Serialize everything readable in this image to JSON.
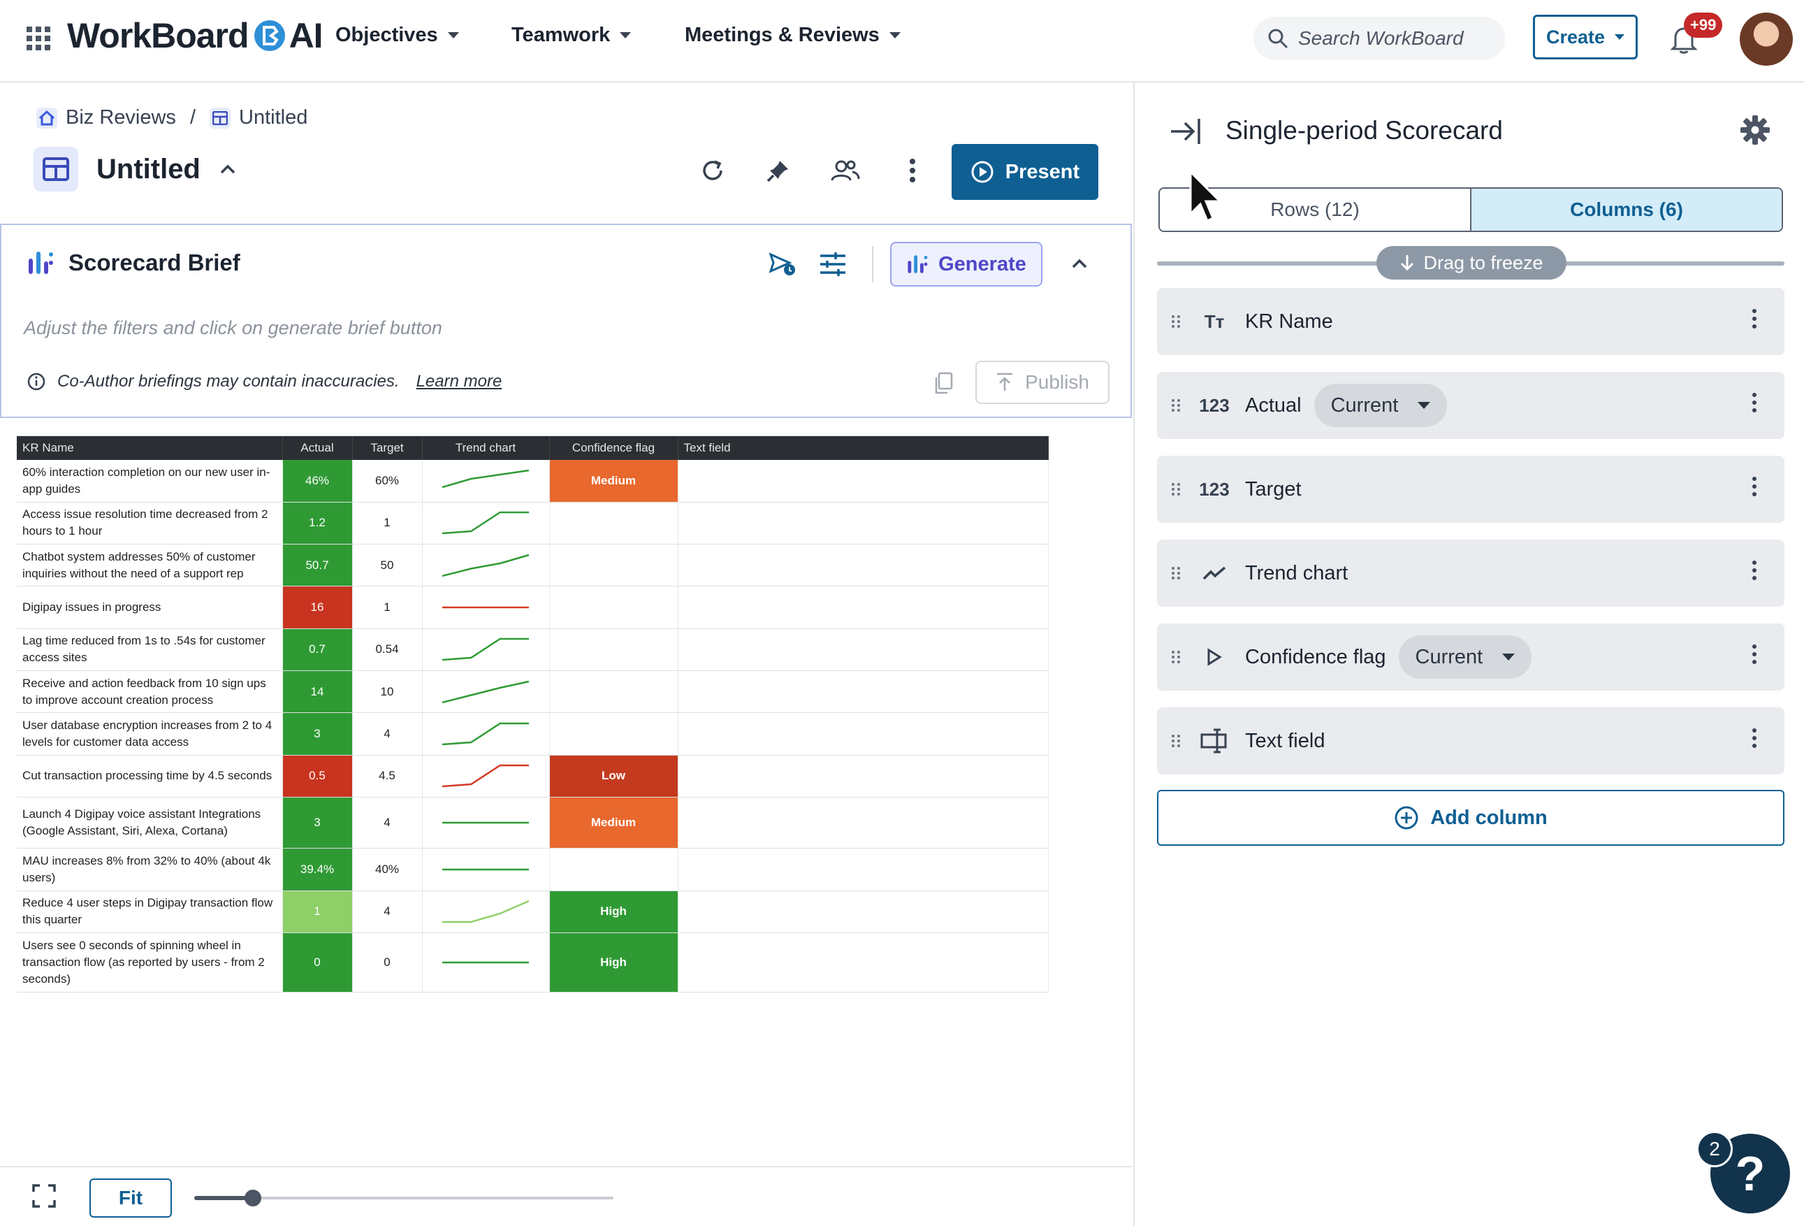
{
  "header": {
    "brand": "WorkBoard",
    "brand_suffix": "AI",
    "nav": [
      "Objectives",
      "Teamwork",
      "Meetings & Reviews"
    ],
    "search_placeholder": "Search WorkBoard",
    "create_label": "Create",
    "notifications": "+99"
  },
  "breadcrumb": {
    "root": "Biz Reviews",
    "separator": "/",
    "current": "Untitled"
  },
  "page": {
    "title": "Untitled",
    "present_label": "Present"
  },
  "brief": {
    "title": "Scorecard Brief",
    "generate_label": "Generate",
    "hint": "Adjust the filters and click on generate brief button",
    "info": "Co-Author briefings may contain inaccuracies.",
    "learn_more": "Learn more",
    "publish_label": "Publish"
  },
  "table": {
    "headers": [
      "KR Name",
      "Actual",
      "Target",
      "Trend chart",
      "Confidence flag",
      "Text field"
    ],
    "rows": [
      {
        "name": "60% interaction completion on our new user in-app guides",
        "actual": "46%",
        "target": "60%",
        "color": "#2f9a34",
        "trend": [
          0.2,
          0.6,
          0.8,
          1.0
        ],
        "trend_color": "#2f9a34",
        "flag": "Medium",
        "flag_color": "#e8682d"
      },
      {
        "name": "Access issue resolution time decreased from 2 hours to 1 hour",
        "actual": "1.2",
        "target": "1",
        "color": "#2f9a34",
        "trend": [
          0.0,
          0.1,
          1.0,
          1.0
        ],
        "trend_color": "#2f9a34",
        "flag": "",
        "flag_color": ""
      },
      {
        "name": "Chatbot system addresses 50% of customer inquiries without the need of a support rep",
        "actual": "50.7",
        "target": "50",
        "color": "#2f9a34",
        "trend": [
          0.0,
          0.35,
          0.6,
          1.0
        ],
        "trend_color": "#2f9a34",
        "flag": "",
        "flag_color": ""
      },
      {
        "name": "Digipay issues in progress",
        "actual": "16",
        "target": "1",
        "color": "#c8341f",
        "trend": [
          0.5,
          0.5,
          0.5,
          0.5
        ],
        "trend_color": "#d63a25",
        "flag": "",
        "flag_color": ""
      },
      {
        "name": "Lag time reduced from 1s to .54s for customer access sites",
        "actual": "0.7",
        "target": "0.54",
        "color": "#2f9a34",
        "trend": [
          0.0,
          0.1,
          1.0,
          1.0
        ],
        "trend_color": "#2f9a34",
        "flag": "",
        "flag_color": ""
      },
      {
        "name": "Receive and action feedback from 10 sign ups to improve account creation process",
        "actual": "14",
        "target": "10",
        "color": "#2f9a34",
        "trend": [
          0.0,
          0.35,
          0.7,
          1.0
        ],
        "trend_color": "#2f9a34",
        "flag": "",
        "flag_color": ""
      },
      {
        "name": "User database encryption increases from 2 to 4 levels for customer data access",
        "actual": "3",
        "target": "4",
        "color": "#2f9a34",
        "trend": [
          0.0,
          0.1,
          1.0,
          1.0
        ],
        "trend_color": "#2f9a34",
        "flag": "",
        "flag_color": ""
      },
      {
        "name": "Cut transaction processing time by 4.5 seconds",
        "actual": "0.5",
        "target": "4.5",
        "color": "#c8341f",
        "trend": [
          0.0,
          0.1,
          1.0,
          1.0
        ],
        "trend_color": "#d63a25",
        "flag": "Low",
        "flag_color": "#c43a1e"
      },
      {
        "name": "Launch 4 Digipay voice assistant Integrations (Google Assistant, Siri, Alexa, Cortana)",
        "actual": "3",
        "target": "4",
        "color": "#2f9a34",
        "trend": [
          0.5,
          0.5,
          0.5,
          0.5
        ],
        "trend_color": "#2f9a34",
        "flag": "Medium",
        "flag_color": "#e8682d"
      },
      {
        "name": "MAU increases 8% from 32% to 40% (about 4k users)",
        "actual": "39.4%",
        "target": "40%",
        "color": "#2f9a34",
        "trend": [
          0.5,
          0.5,
          0.5,
          0.5
        ],
        "trend_color": "#2f9a34",
        "flag": "",
        "flag_color": ""
      },
      {
        "name": "Reduce 4 user steps in Digipay transaction flow this quarter",
        "actual": "1",
        "target": "4",
        "color": "#8fcf67",
        "trend": [
          0.0,
          0.0,
          0.4,
          1.0
        ],
        "trend_color": "#8fcf67",
        "flag": "High",
        "flag_color": "#2f9a34"
      },
      {
        "name": "Users see 0 seconds of spinning wheel in transaction flow (as reported by users - from 2 seconds)",
        "actual": "0",
        "target": "0",
        "color": "#2f9a34",
        "trend": [
          0.5,
          0.5,
          0.5,
          0.5
        ],
        "trend_color": "#2f9a34",
        "flag": "High",
        "flag_color": "#2f9a34"
      }
    ]
  },
  "bottom": {
    "fit_label": "Fit",
    "zoom_fraction": 0.14
  },
  "right_panel": {
    "title": "Single-period Scorecard",
    "rows_tab": "Rows (12)",
    "columns_tab": "Columns (6)",
    "freeze_label": "Drag to freeze",
    "columns": [
      {
        "icon": "Tт",
        "label": "KR Name",
        "dropdown": ""
      },
      {
        "icon": "123",
        "label": "Actual",
        "dropdown": "Current"
      },
      {
        "icon": "123",
        "label": "Target",
        "dropdown": ""
      },
      {
        "icon": "trend",
        "label": "Trend chart",
        "dropdown": ""
      },
      {
        "icon": "play",
        "label": "Confidence flag",
        "dropdown": "Current"
      },
      {
        "icon": "textfield",
        "label": "Text field",
        "dropdown": ""
      }
    ],
    "add_column_label": "Add column"
  },
  "help": {
    "label": "?",
    "count": "2"
  }
}
